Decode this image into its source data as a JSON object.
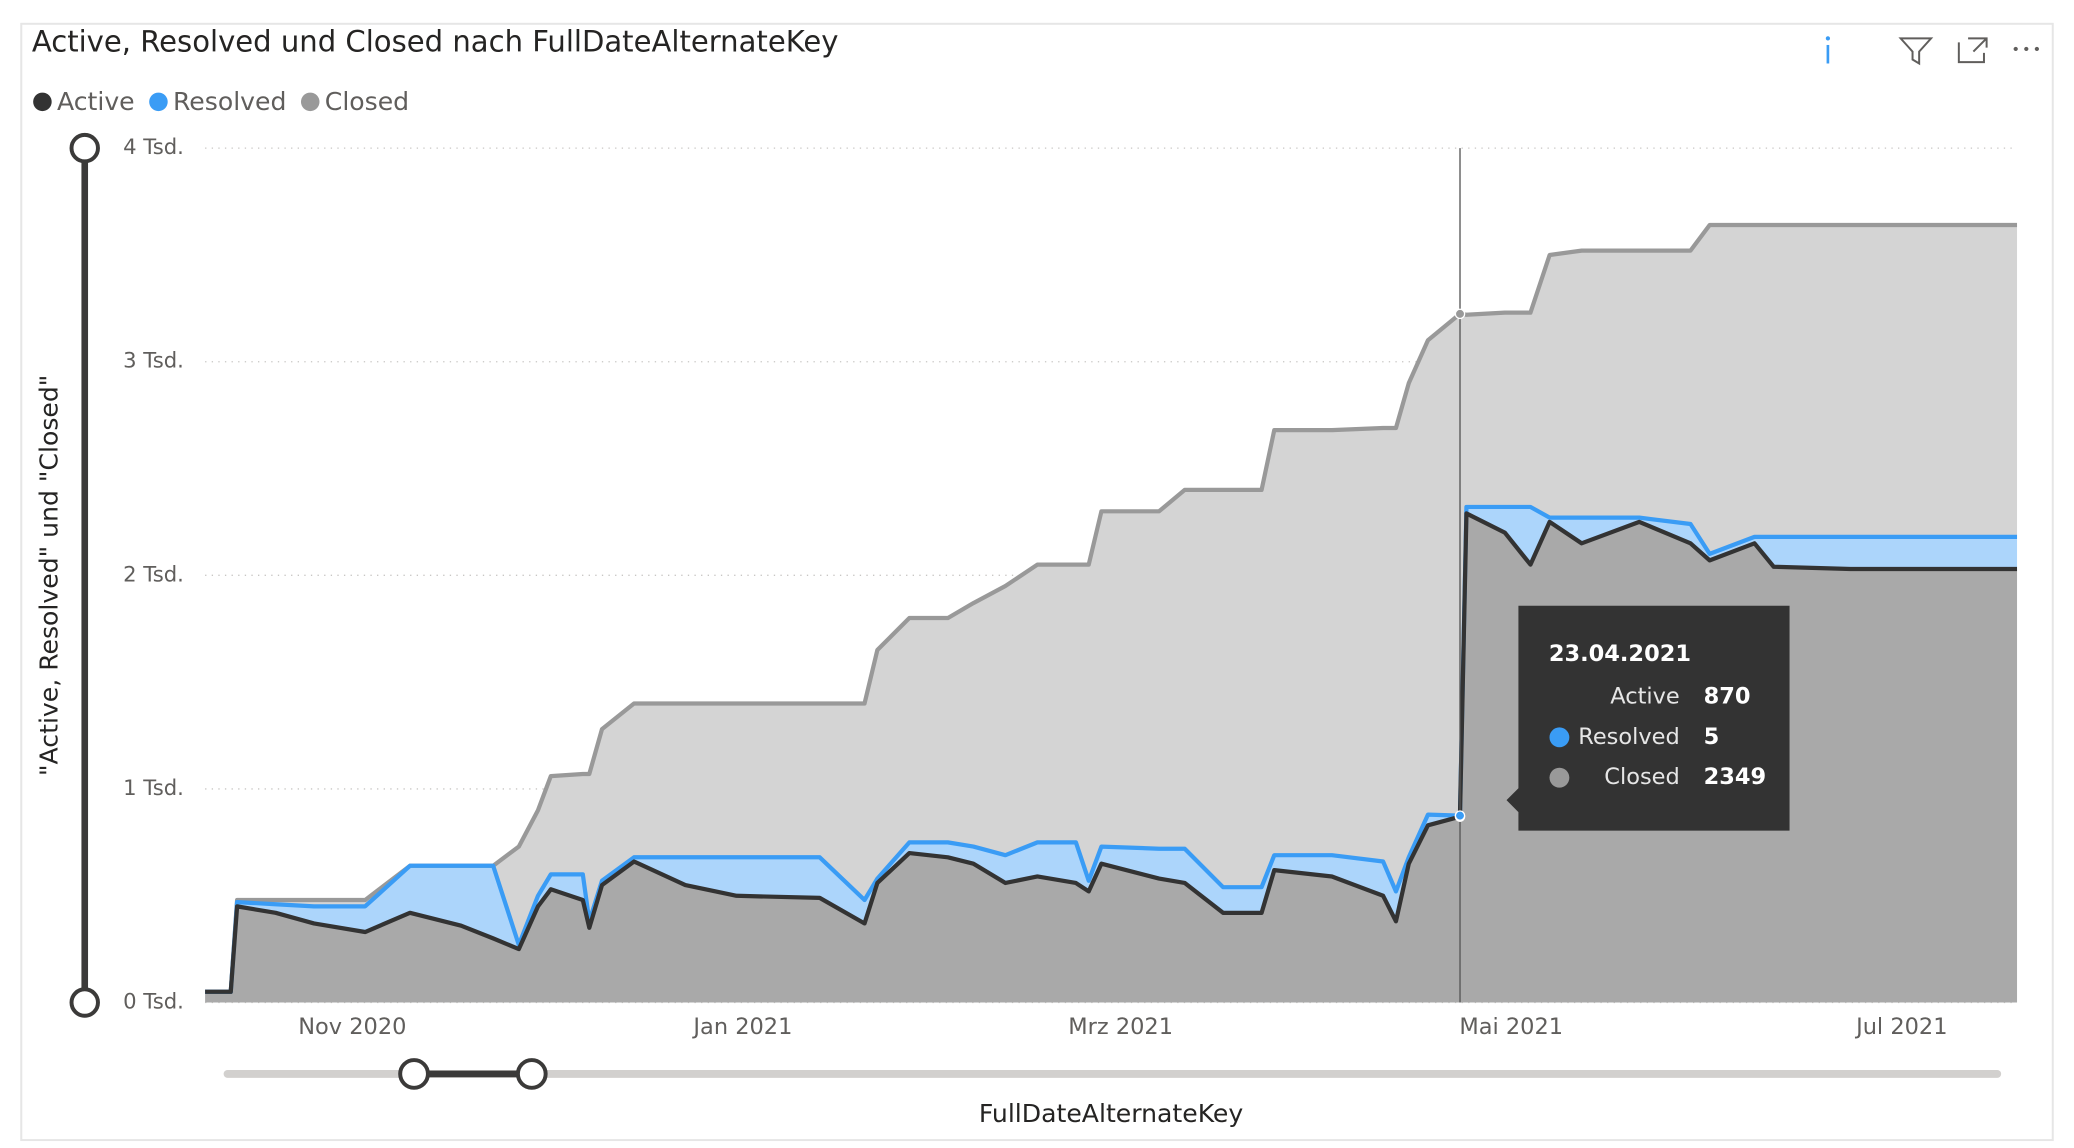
{
  "chart_data": {
    "type": "stacked_area",
    "title": "Active, Resolved und Closed nach FullDateAlternateKey",
    "x_label": "FullDateAlternateKey",
    "y_label": "\"Active, Resolved\" und \"Closed\"",
    "x": [
      "2020-10-09",
      "2020-10-13",
      "2020-10-14",
      "2020-10-20",
      "2020-10-26",
      "2020-11-03",
      "2020-11-10",
      "2020-11-18",
      "2020-11-23",
      "2020-11-27",
      "2020-11-30",
      "2020-12-02",
      "2020-12-07",
      "2020-12-08",
      "2020-12-10",
      "2020-12-15",
      "2020-12-23",
      "2020-12-31",
      "2021-01-13",
      "2021-01-20",
      "2021-01-22",
      "2021-01-27",
      "2021-02-02",
      "2021-02-06",
      "2021-02-11",
      "2021-02-16",
      "2021-02-22",
      "2021-02-24",
      "2021-02-26",
      "2021-03-07",
      "2021-03-11",
      "2021-03-17",
      "2021-03-23",
      "2021-03-25",
      "2021-04-03",
      "2021-04-11",
      "2021-04-13",
      "2021-04-15",
      "2021-04-18",
      "2021-04-23",
      "2021-04-24",
      "2021-04-30",
      "2021-05-04",
      "2021-05-07",
      "2021-05-12",
      "2021-05-21",
      "2021-05-29",
      "2021-06-01",
      "2021-06-08",
      "2021-06-11",
      "2021-06-23",
      "2021-07-19"
    ],
    "series": [
      {
        "name": "Active",
        "color": "#333333",
        "values": [
          50,
          50,
          450,
          420,
          370,
          330,
          420,
          360,
          300,
          250,
          450,
          530,
          480,
          350,
          550,
          660,
          550,
          500,
          490,
          370,
          560,
          700,
          680,
          650,
          560,
          590,
          560,
          520,
          650,
          580,
          560,
          420,
          420,
          620,
          590,
          500,
          380,
          650,
          830,
          870,
          2290,
          2200,
          2050,
          2250,
          2150,
          2250,
          2150,
          2070,
          2150,
          2040,
          2030,
          2030
        ]
      },
      {
        "name": "Resolved",
        "color": "#3a9cf5",
        "values": [
          0,
          0,
          20,
          40,
          80,
          120,
          220,
          280,
          340,
          20,
          50,
          70,
          120,
          30,
          20,
          20,
          130,
          180,
          190,
          110,
          20,
          50,
          70,
          80,
          130,
          160,
          190,
          50,
          80,
          140,
          160,
          120,
          120,
          70,
          100,
          160,
          140,
          30,
          50,
          5,
          30,
          120,
          270,
          20,
          120,
          20,
          90,
          30,
          30,
          140,
          150,
          150
        ]
      },
      {
        "name": "Closed",
        "color": "#999999",
        "values": [
          0,
          0,
          10,
          20,
          30,
          30,
          0,
          0,
          0,
          460,
          400,
          460,
          470,
          690,
          710,
          720,
          720,
          720,
          720,
          920,
          1070,
          1050,
          1050,
          1140,
          1260,
          1300,
          1300,
          1480,
          1570,
          1580,
          1680,
          1860,
          1860,
          1990,
          1990,
          2030,
          2170,
          2220,
          2220,
          2349,
          900,
          910,
          910,
          1230,
          1250,
          1250,
          1280,
          1540,
          1460,
          1460,
          1460,
          1460
        ]
      }
    ],
    "xlim": [
      "2020-10-09",
      "2021-07-19"
    ],
    "xticks": [
      {
        "value": "2020-11-01",
        "label": "Nov 2020"
      },
      {
        "value": "2021-01-01",
        "label": "Jan 2021"
      },
      {
        "value": "2021-03-01",
        "label": "Mrz 2021"
      },
      {
        "value": "2021-05-01",
        "label": "Mai 2021"
      },
      {
        "value": "2021-07-01",
        "label": "Jul 2021"
      }
    ],
    "ylim": [
      0,
      4000
    ],
    "yticks": [
      {
        "value": 0,
        "label": "0 Tsd."
      },
      {
        "value": 1000,
        "label": "1 Tsd."
      },
      {
        "value": 2000,
        "label": "2 Tsd."
      },
      {
        "value": 3000,
        "label": "3 Tsd."
      },
      {
        "value": 4000,
        "label": "4 Tsd."
      }
    ],
    "grid": true,
    "legend": "top-left",
    "tooltip": {
      "date": "23.04.2021",
      "values": [
        870,
        5,
        2349
      ]
    }
  }
}
